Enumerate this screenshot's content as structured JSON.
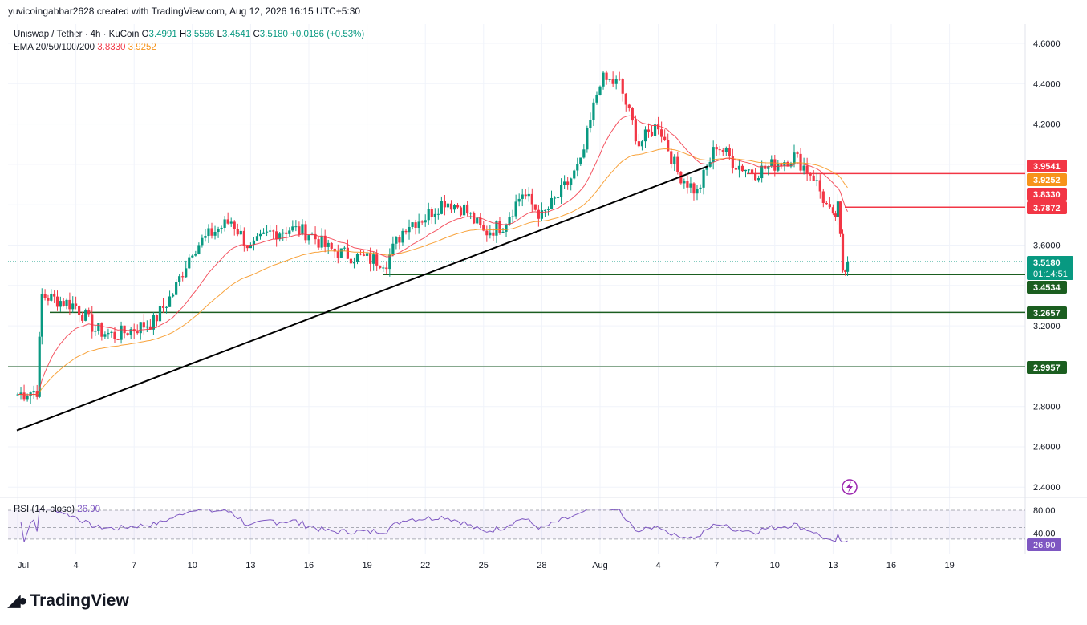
{
  "header": {
    "credit": "yuvicoingabbar2628 created with TradingView.com, Aug 12, 2026 16:15 UTC+5:30"
  },
  "legend": {
    "symbol": "Uniswap / Tether · 4h · KuCoin",
    "o_label": "O",
    "o": "3.4991",
    "h_label": "H",
    "h": "3.5586",
    "l_label": "L",
    "l": "3.4541",
    "c_label": "C",
    "c": "3.5180",
    "change": "+0.0186 (+0.53%)",
    "ema_label": "EMA 20/50/100/200",
    "ema20": "3.8330",
    "ema50": "3.9252"
  },
  "rsi": {
    "label": "RSI (14, close)",
    "value": "26.90",
    "levels": [
      "80.00",
      "40.00"
    ]
  },
  "footer": {
    "brand": "TradingView"
  },
  "colors": {
    "up": "#089981",
    "down": "#f23645",
    "ema20": "#f23645",
    "ema50": "#f7931a",
    "support": "#1b5e20",
    "resistance": "#f23645",
    "rsi": "#7e57c2",
    "trendline": "#000000"
  },
  "chart_data": {
    "type": "candlestick",
    "symbol": "Uniswap / Tether",
    "timeframe": "4h",
    "exchange": "KuCoin",
    "ylim": [
      2.36,
      4.66
    ],
    "y_ticks": [
      "4.6000",
      "4.4000",
      "4.2000",
      "3.6000",
      "3.2000",
      "2.8000",
      "2.6000",
      "2.4000"
    ],
    "x_ticks": [
      "Jul",
      "4",
      "7",
      "10",
      "13",
      "16",
      "19",
      "22",
      "25",
      "28",
      "Aug",
      "4",
      "7",
      "10",
      "13",
      "16",
      "19"
    ],
    "current_price": "3.5180",
    "countdown": "01:14:51",
    "price_tags": [
      {
        "label": "3.9541",
        "color": "#f23645"
      },
      {
        "label": "3.9252",
        "color": "#f7931a"
      },
      {
        "label": "3.8330",
        "color": "#f23645"
      },
      {
        "label": "3.7872",
        "color": "#f23645"
      },
      {
        "label": "3.4534",
        "color": "#1b5e20"
      },
      {
        "label": "3.2657",
        "color": "#1b5e20"
      },
      {
        "label": "2.9957",
        "color": "#1b5e20"
      }
    ],
    "horizontal_levels": [
      {
        "price": 3.9541,
        "kind": "resistance"
      },
      {
        "price": 3.7872,
        "kind": "resistance"
      },
      {
        "price": 3.4534,
        "kind": "support"
      },
      {
        "price": 3.2657,
        "kind": "support"
      },
      {
        "price": 2.9957,
        "kind": "support"
      }
    ],
    "trendline": {
      "from_price": 2.68,
      "to_price": 3.99
    },
    "close_path": [
      {
        "x": "Jul 1",
        "y": 2.86
      },
      {
        "x": "Jul 2",
        "y": 2.88
      },
      {
        "x": "Jul 2",
        "y": 3.35
      },
      {
        "x": "Jul 4",
        "y": 3.3
      },
      {
        "x": "Jul 5",
        "y": 3.18
      },
      {
        "x": "Jul 6",
        "y": 3.15
      },
      {
        "x": "Jul 8",
        "y": 3.22
      },
      {
        "x": "Jul 9",
        "y": 3.36
      },
      {
        "x": "Jul 10",
        "y": 3.58
      },
      {
        "x": "Jul 11",
        "y": 3.66
      },
      {
        "x": "Jul 12",
        "y": 3.72
      },
      {
        "x": "Jul 13",
        "y": 3.58
      },
      {
        "x": "Jul 14",
        "y": 3.66
      },
      {
        "x": "Jul 15",
        "y": 3.68
      },
      {
        "x": "Jul 16",
        "y": 3.66
      },
      {
        "x": "Jul 17",
        "y": 3.58
      },
      {
        "x": "Jul 18",
        "y": 3.55
      },
      {
        "x": "Jul 19",
        "y": 3.53
      },
      {
        "x": "Jul 20",
        "y": 3.52
      },
      {
        "x": "Jul 21",
        "y": 3.7
      },
      {
        "x": "Jul 22",
        "y": 3.74
      },
      {
        "x": "Jul 23",
        "y": 3.82
      },
      {
        "x": "Jul 24",
        "y": 3.78
      },
      {
        "x": "Jul 25",
        "y": 3.66
      },
      {
        "x": "Jul 26",
        "y": 3.7
      },
      {
        "x": "Jul 27",
        "y": 3.86
      },
      {
        "x": "Jul 28",
        "y": 3.74
      },
      {
        "x": "Jul 29",
        "y": 3.86
      },
      {
        "x": "Jul 30",
        "y": 4.0
      },
      {
        "x": "Jul 31",
        "y": 4.42
      },
      {
        "x": "Aug 1",
        "y": 4.4
      },
      {
        "x": "Aug 2",
        "y": 4.1
      },
      {
        "x": "Aug 3",
        "y": 4.2
      },
      {
        "x": "Aug 4",
        "y": 3.96
      },
      {
        "x": "Aug 5",
        "y": 3.86
      },
      {
        "x": "Aug 6",
        "y": 4.1
      },
      {
        "x": "Aug 7",
        "y": 4.0
      },
      {
        "x": "Aug 8",
        "y": 3.96
      },
      {
        "x": "Aug 9",
        "y": 4.0
      },
      {
        "x": "Aug 10",
        "y": 4.04
      },
      {
        "x": "Aug 11",
        "y": 3.94
      },
      {
        "x": "Aug 12",
        "y": 3.72
      },
      {
        "x": "Aug 12",
        "y": 3.78
      },
      {
        "x": "Aug 12",
        "y": 3.48
      },
      {
        "x": "Aug 12",
        "y": 3.52
      }
    ]
  }
}
